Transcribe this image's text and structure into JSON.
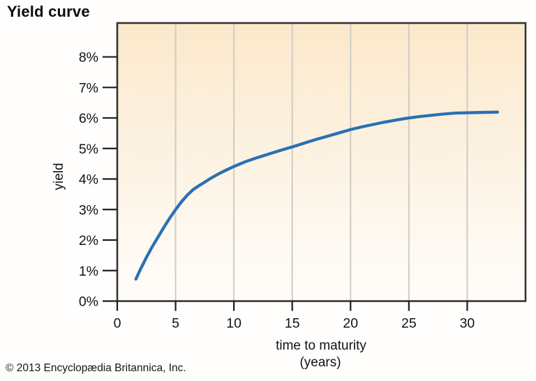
{
  "page": {
    "title": "Yield curve",
    "copyright": "© 2013 Encyclopædia Britannica, Inc."
  },
  "chart_data": {
    "type": "line",
    "title": "Yield curve",
    "xlabel": "time to maturity",
    "xlabel_line2": "(years)",
    "ylabel": "yield",
    "xlim": [
      0,
      35
    ],
    "ylim": [
      0,
      9.11
    ],
    "x_ticks": [
      0,
      5,
      10,
      15,
      20,
      25,
      30
    ],
    "x_tick_labels": [
      "0",
      "5",
      "10",
      "15",
      "20",
      "25",
      "30"
    ],
    "y_ticks": [
      0,
      1,
      2,
      3,
      4,
      5,
      6,
      7,
      8
    ],
    "y_tick_labels": [
      "0%",
      "1%",
      "2%",
      "3%",
      "4%",
      "5%",
      "6%",
      "7%",
      "8%"
    ],
    "grid": "vertical-only",
    "legend": "none",
    "gridline_color": "#cdccc5",
    "border_color": "#333333",
    "tick_color": "#1c1c1c",
    "plot_bg_gradient": [
      "#fbe8ca",
      "#fdf4e6",
      "#fffdfa"
    ],
    "series": [
      {
        "name": "yield curve",
        "color": "#2a70b4",
        "points": [
          [
            1.6,
            0.72
          ],
          [
            2,
            1.05
          ],
          [
            2.5,
            1.43
          ],
          [
            3,
            1.78
          ],
          [
            3.5,
            2.1
          ],
          [
            4,
            2.42
          ],
          [
            4.5,
            2.72
          ],
          [
            5,
            3.0
          ],
          [
            5.5,
            3.25
          ],
          [
            6,
            3.47
          ],
          [
            6.5,
            3.65
          ],
          [
            7,
            3.78
          ],
          [
            7.5,
            3.9
          ],
          [
            8,
            4.02
          ],
          [
            8.5,
            4.13
          ],
          [
            9,
            4.23
          ],
          [
            9.5,
            4.32
          ],
          [
            10,
            4.41
          ],
          [
            11,
            4.57
          ],
          [
            12,
            4.7
          ],
          [
            13,
            4.82
          ],
          [
            14,
            4.94
          ],
          [
            15,
            5.05
          ],
          [
            16,
            5.17
          ],
          [
            17,
            5.29
          ],
          [
            18,
            5.4
          ],
          [
            19,
            5.51
          ],
          [
            20,
            5.62
          ],
          [
            21,
            5.71
          ],
          [
            22,
            5.79
          ],
          [
            23,
            5.87
          ],
          [
            24,
            5.94
          ],
          [
            25,
            6.0
          ],
          [
            26,
            6.05
          ],
          [
            27,
            6.09
          ],
          [
            28,
            6.13
          ],
          [
            29,
            6.16
          ],
          [
            30,
            6.17
          ],
          [
            31,
            6.18
          ],
          [
            32.6,
            6.19
          ]
        ]
      }
    ]
  }
}
